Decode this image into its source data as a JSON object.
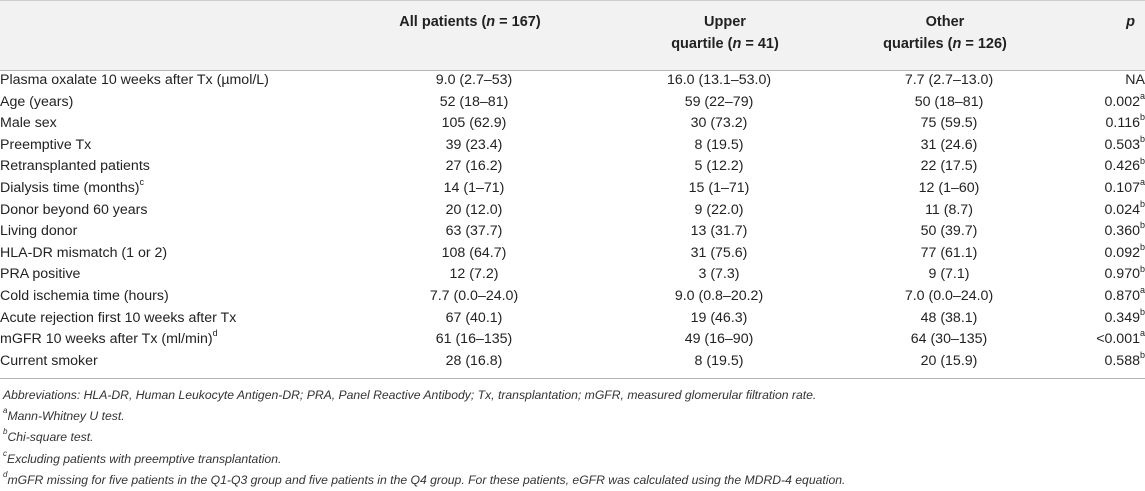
{
  "header": {
    "col1_prefix": "All patients (",
    "col1_n": "n",
    "col1_suffix": " = 167)",
    "col2_line1": "Upper",
    "col2_prefix": "quartile (",
    "col2_n": "n",
    "col2_suffix": " = 41)",
    "col3_line1": "Other",
    "col3_prefix": "quartiles (",
    "col3_n": "n",
    "col3_suffix": " = 126)",
    "col4": "p"
  },
  "rows": [
    {
      "label": "Plasma oxalate 10 weeks after Tx (µmol/L)",
      "label_sup": "",
      "all": "9.0 (2.7–53)",
      "upper": "16.0 (13.1–53.0)",
      "other": "7.7 (2.7–13.0)",
      "p": "NA",
      "p_sup": ""
    },
    {
      "label": "Age (years)",
      "label_sup": "",
      "all": "52 (18–81)",
      "upper": "59 (22–79)",
      "other": "50 (18–81)",
      "p": "0.002",
      "p_sup": "a"
    },
    {
      "label": "Male sex",
      "label_sup": "",
      "all": "105 (62.9)",
      "upper": "30 (73.2)",
      "other": "75 (59.5)",
      "p": "0.116",
      "p_sup": "b"
    },
    {
      "label": "Preemptive Tx",
      "label_sup": "",
      "all": "39 (23.4)",
      "upper": "8 (19.5)",
      "other": "31 (24.6)",
      "p": "0.503",
      "p_sup": "b"
    },
    {
      "label": "Retransplanted patients",
      "label_sup": "",
      "all": "27 (16.2)",
      "upper": "5 (12.2)",
      "other": "22 (17.5)",
      "p": "0.426",
      "p_sup": "b"
    },
    {
      "label": "Dialysis time (months)",
      "label_sup": "c",
      "all": "14 (1–71)",
      "upper": "15 (1–71)",
      "other": "12 (1–60)",
      "p": "0.107",
      "p_sup": "a"
    },
    {
      "label": "Donor beyond 60 years",
      "label_sup": "",
      "all": "20 (12.0)",
      "upper": "9 (22.0)",
      "other": "11 (8.7)",
      "p": "0.024",
      "p_sup": "b"
    },
    {
      "label": "Living donor",
      "label_sup": "",
      "all": "63 (37.7)",
      "upper": "13 (31.7)",
      "other": "50 (39.7)",
      "p": "0.360",
      "p_sup": "b"
    },
    {
      "label": "HLA-DR mismatch (1 or 2)",
      "label_sup": "",
      "all": "108 (64.7)",
      "upper": "31 (75.6)",
      "other": "77 (61.1)",
      "p": "0.092",
      "p_sup": "b"
    },
    {
      "label": "PRA positive",
      "label_sup": "",
      "all": "12 (7.2)",
      "upper": "3 (7.3)",
      "other": "9 (7.1)",
      "p": "0.970",
      "p_sup": "b"
    },
    {
      "label": "Cold ischemia time (hours)",
      "label_sup": "",
      "all": "7.7 (0.0–24.0)",
      "upper": "9.0 (0.8–20.2)",
      "other": "7.0 (0.0–24.0)",
      "p": "0.870",
      "p_sup": "a"
    },
    {
      "label": "Acute rejection first 10 weeks after Tx",
      "label_sup": "",
      "all": "67 (40.1)",
      "upper": "19 (46.3)",
      "other": "48 (38.1)",
      "p": "0.349",
      "p_sup": "b"
    },
    {
      "label": "mGFR 10 weeks after Tx (ml/min)",
      "label_sup": "d",
      "all": "61 (16–135)",
      "upper": "49 (16–90)",
      "other": "64 (30–135)",
      "p": "<0.001",
      "p_sup": "a"
    },
    {
      "label": "Current smoker",
      "label_sup": "",
      "all": "28 (16.8)",
      "upper": "8 (19.5)",
      "other": "20 (15.9)",
      "p": "0.588",
      "p_sup": "b"
    }
  ],
  "footnotes": [
    {
      "sup": "",
      "text": "Abbreviations: HLA-DR, Human Leukocyte Antigen-DR; PRA, Panel Reactive Antibody; Tx, transplantation; mGFR, measured glomerular filtration rate."
    },
    {
      "sup": "a",
      "text": "Mann-Whitney U test."
    },
    {
      "sup": "b",
      "text": "Chi-square test."
    },
    {
      "sup": "c",
      "text": "Excluding patients with preemptive transplantation."
    },
    {
      "sup": "d",
      "text": "mGFR missing for five patients in the Q1-Q3 group and five patients in the Q4 group. For these patients, eGFR was calculated using the MDRD-4 equation."
    }
  ]
}
